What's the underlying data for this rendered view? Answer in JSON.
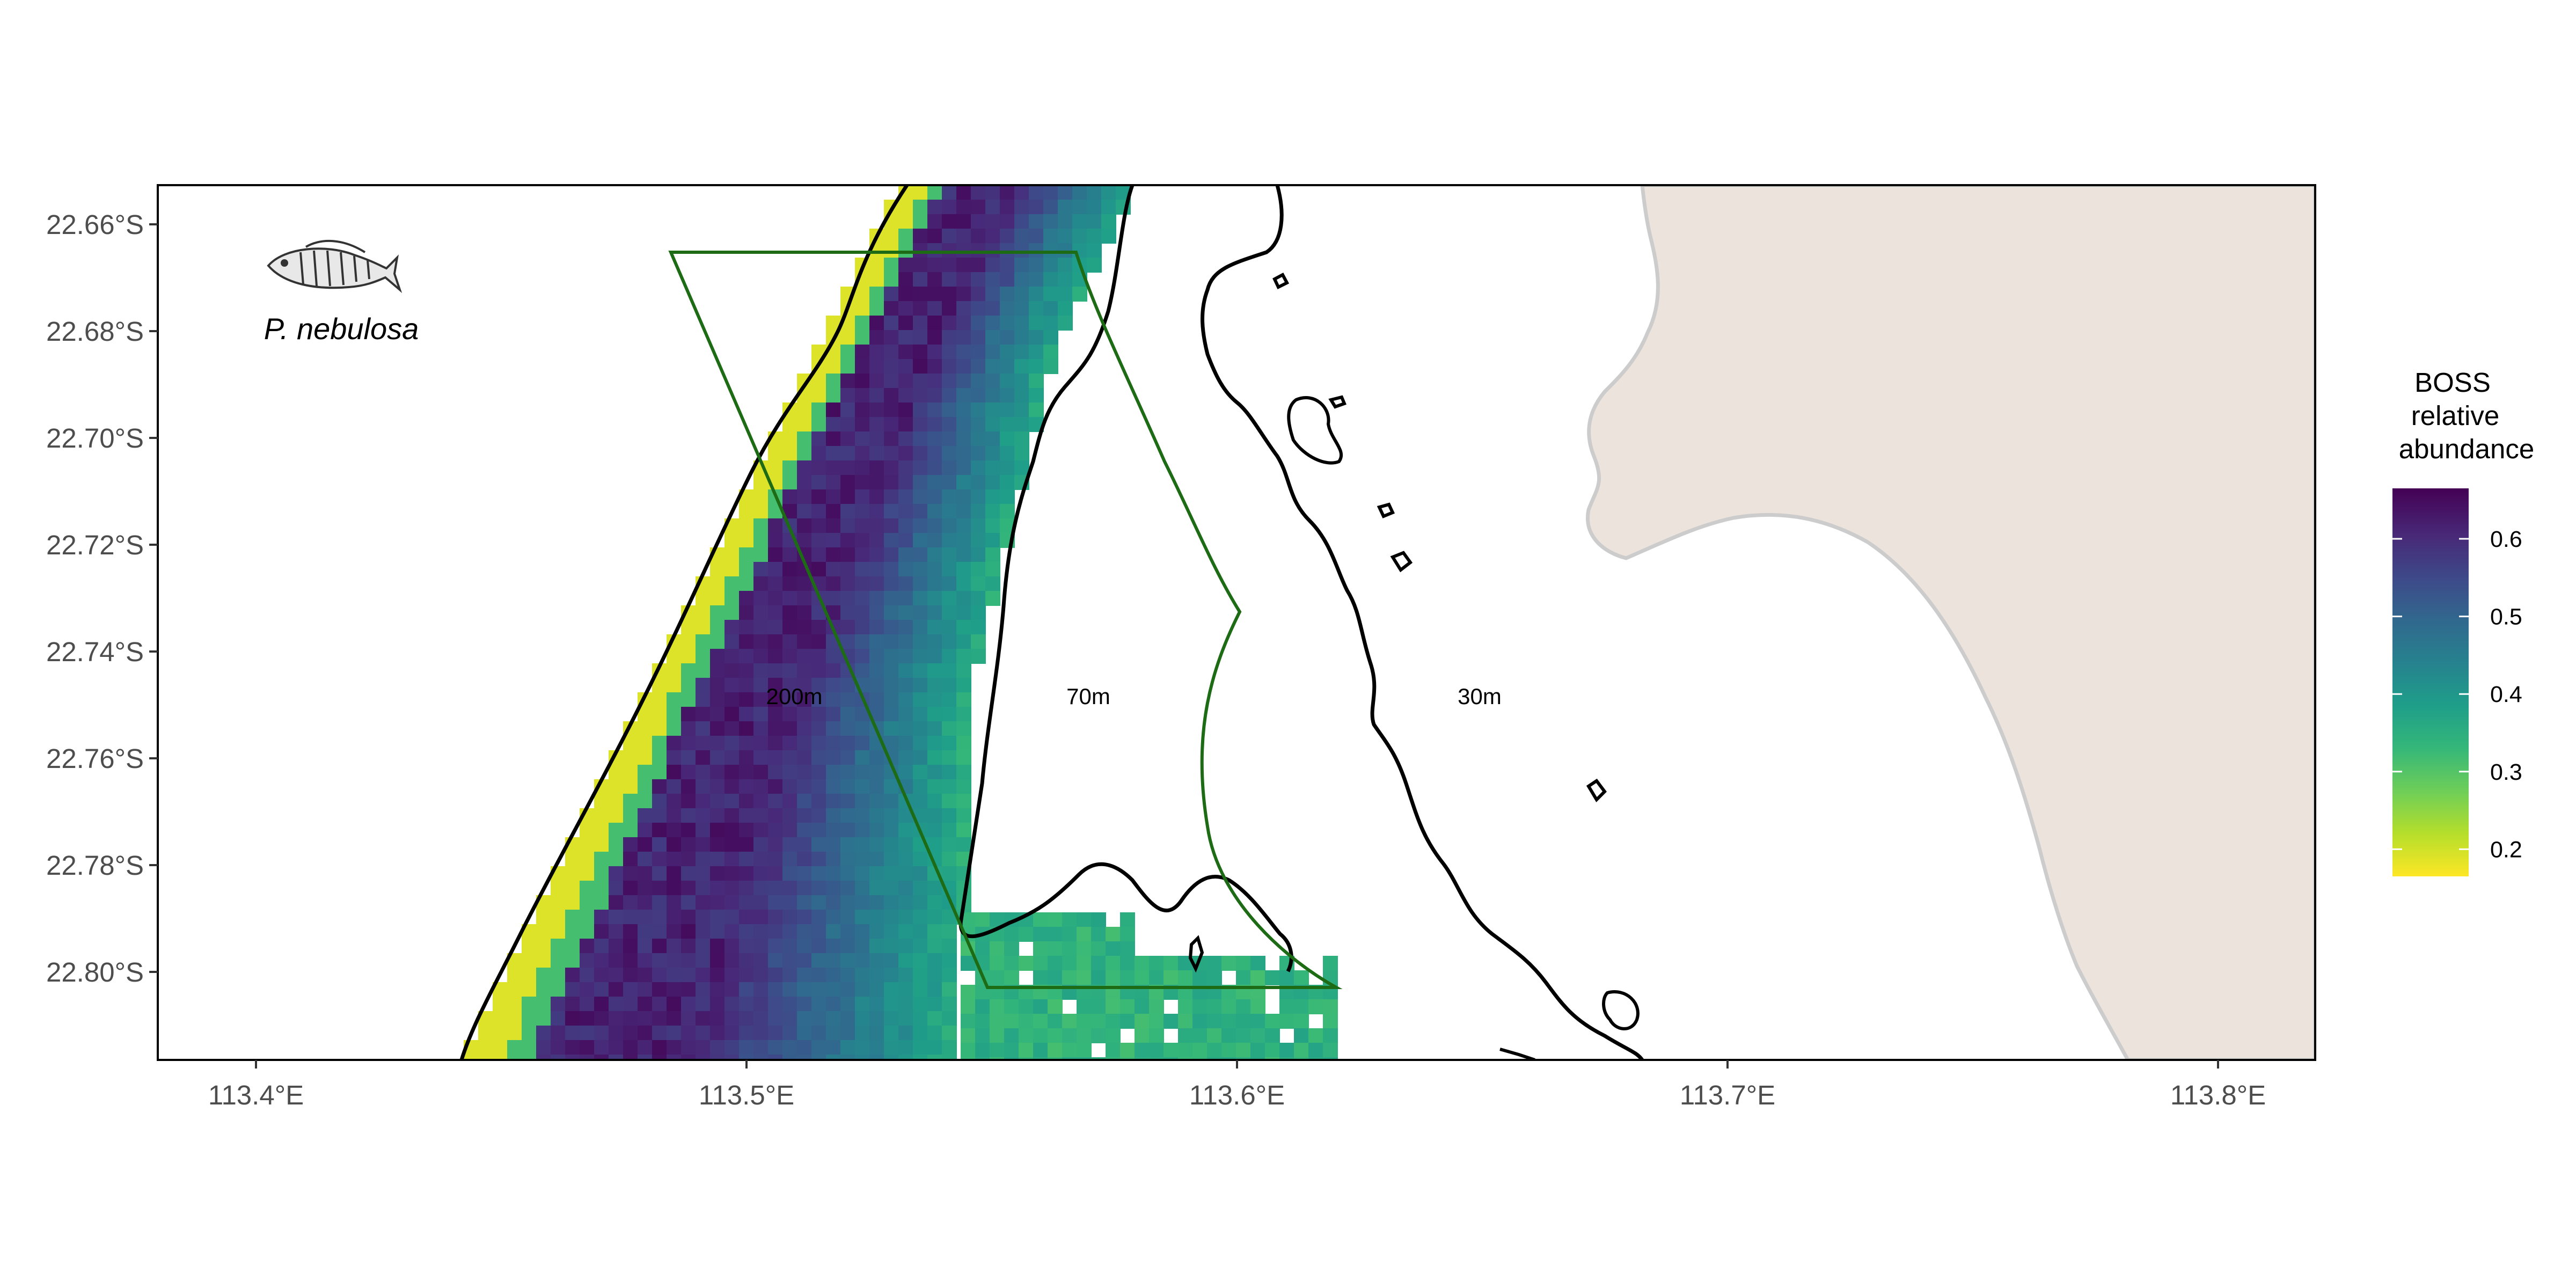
{
  "map": {
    "x_ticks": [
      "113.4°E",
      "113.5°E",
      "113.6°E",
      "113.7°E",
      "113.8°E"
    ],
    "y_ticks": [
      "22.66°S",
      "22.68°S",
      "22.70°S",
      "22.72°S",
      "22.74°S",
      "22.76°S",
      "22.78°S",
      "22.80°S"
    ],
    "contour_labels": {
      "deep": "200m",
      "mid": "70m",
      "shallow": "30m"
    },
    "species": "P. nebulosa",
    "colors": {
      "land": "#ece3dd",
      "coastline": "#cccccc",
      "contours": "#000000",
      "survey_polygon": "#1d6b14",
      "panel_border": "#000000",
      "background": "#ffffff"
    }
  },
  "legend": {
    "title_lines": [
      "BOSS",
      "relative",
      "abundance"
    ],
    "ticks": [
      "0.6",
      "0.5",
      "0.4",
      "0.3",
      "0.2"
    ],
    "tick_values": [
      0.6,
      0.5,
      0.4,
      0.3,
      0.2
    ],
    "range": [
      0.165,
      0.665
    ],
    "palette": [
      "#fde725",
      "#b5de2b",
      "#6ece58",
      "#35b779",
      "#1f9e89",
      "#26828e",
      "#31688e",
      "#3e4989",
      "#482878",
      "#440154"
    ]
  }
}
